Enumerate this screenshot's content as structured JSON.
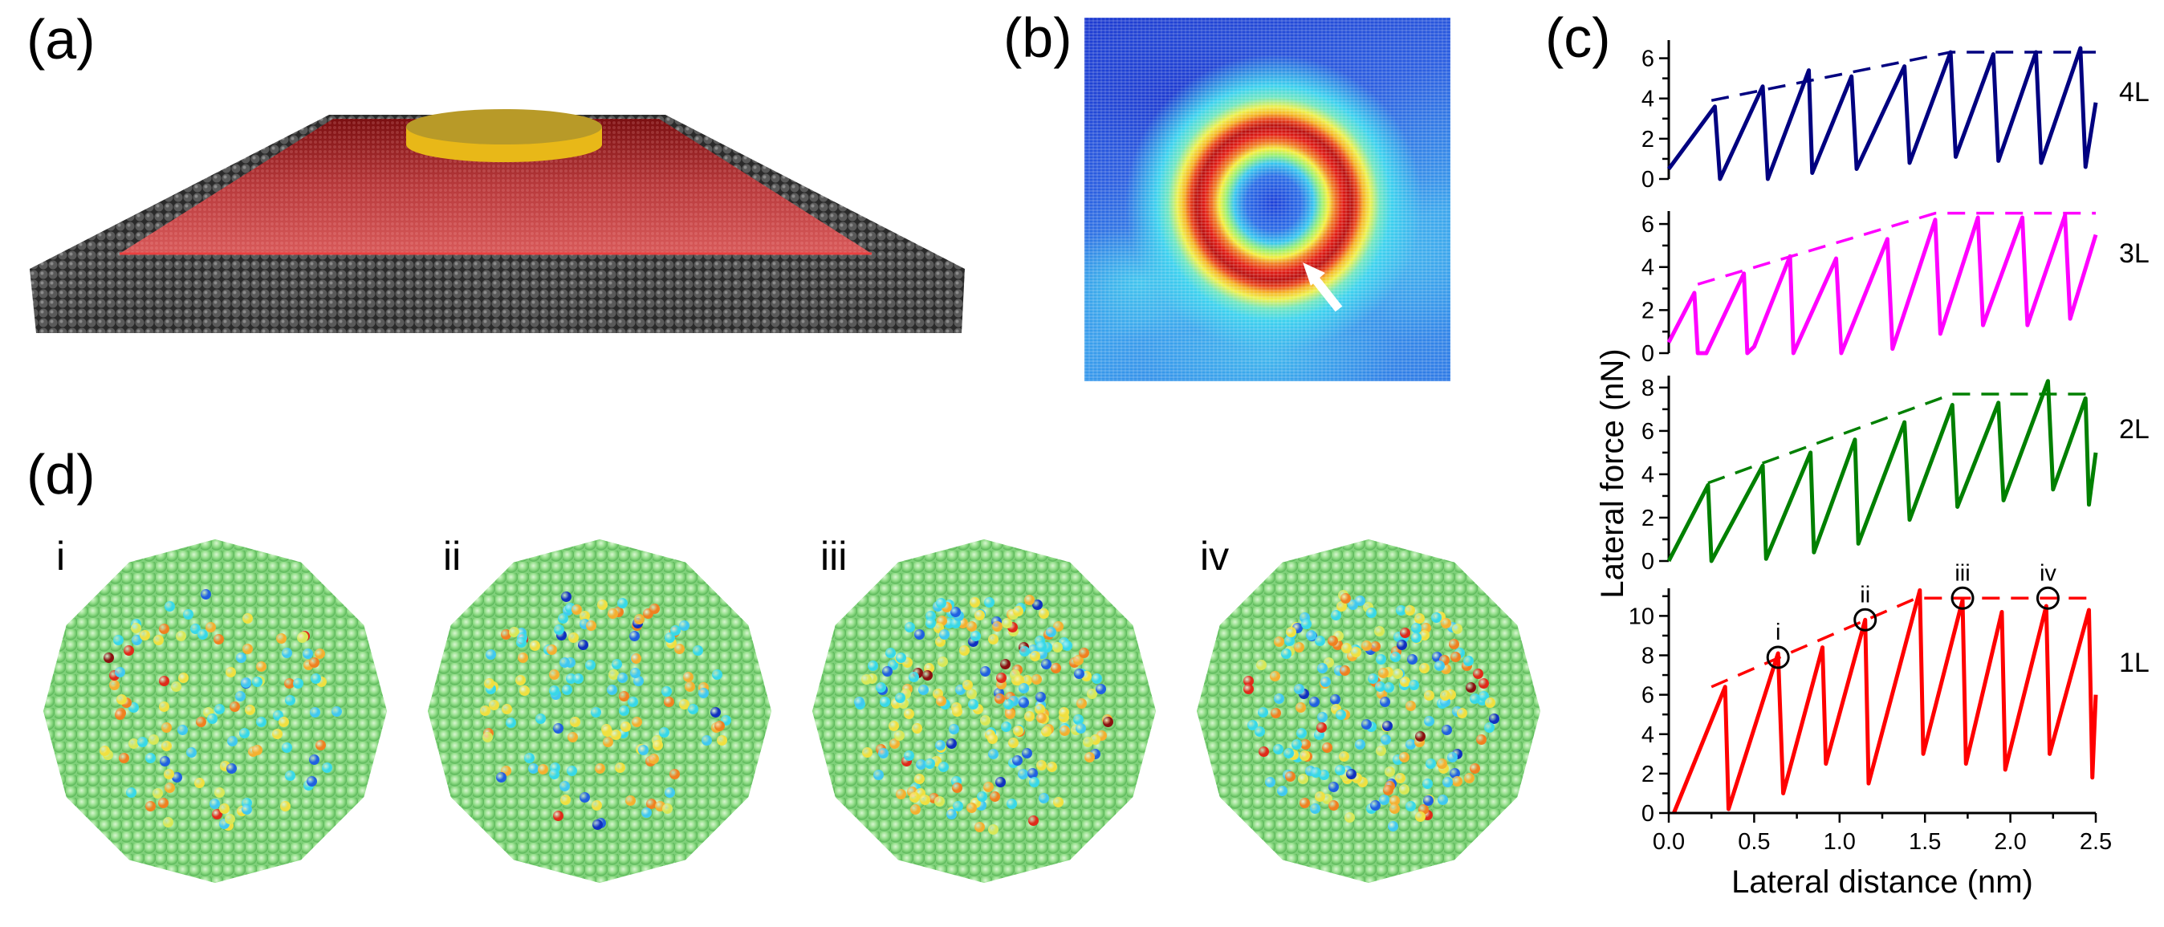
{
  "panel_labels": {
    "a": "(a)",
    "b": "(b)",
    "c": "(c)",
    "d": "(d)"
  },
  "panel_d": {
    "snapshots": [
      "i",
      "ii",
      "iii",
      "iv"
    ]
  },
  "panel_a": {
    "colors": {
      "substrate": "#3a3a3a",
      "layer": "#c0282a",
      "tip": "#d4aa20"
    }
  },
  "panel_b": {
    "colormap": "jet",
    "arrow_color": "#ffffff"
  },
  "chart_data": {
    "type": "line",
    "xlabel": "Lateral distance (nm)",
    "ylabel": "Lateral force (nN)",
    "xlim": [
      0,
      2.5
    ],
    "xticks": [
      "0.0",
      "0.5",
      "1.0",
      "1.5",
      "2.0",
      "2.5"
    ],
    "grid": false,
    "panels": [
      {
        "name": "4L",
        "color": "#000080",
        "ylim": [
          0,
          6.9
        ],
        "yticks": [
          0,
          2,
          4,
          6
        ],
        "series": [
          [
            0,
            0.5
          ],
          [
            0.27,
            3.6
          ],
          [
            0.3,
            0
          ],
          [
            0.55,
            4.6
          ],
          [
            0.58,
            0
          ],
          [
            0.82,
            5.4
          ],
          [
            0.84,
            0.3
          ],
          [
            1.07,
            5.1
          ],
          [
            1.1,
            0.5
          ],
          [
            1.38,
            5.6
          ],
          [
            1.41,
            0.8
          ],
          [
            1.65,
            6.3
          ],
          [
            1.68,
            1.1
          ],
          [
            1.9,
            6.2
          ],
          [
            1.93,
            0.9
          ],
          [
            2.15,
            6.3
          ],
          [
            2.18,
            0.8
          ],
          [
            2.41,
            6.5
          ],
          [
            2.44,
            0.6
          ],
          [
            2.5,
            3.8
          ]
        ],
        "envelope": [
          [
            0.25,
            3.9
          ],
          [
            1.65,
            6.3
          ],
          [
            2.5,
            6.3
          ]
        ]
      },
      {
        "name": "3L",
        "color": "#ff00ff",
        "ylim": [
          0,
          6.6
        ],
        "yticks": [
          0,
          2,
          4,
          6
        ],
        "series": [
          [
            0,
            0.5
          ],
          [
            0.15,
            2.8
          ],
          [
            0.17,
            0
          ],
          [
            0.22,
            0
          ],
          [
            0.44,
            3.7
          ],
          [
            0.46,
            0
          ],
          [
            0.5,
            0.3
          ],
          [
            0.71,
            4.5
          ],
          [
            0.73,
            0
          ],
          [
            0.98,
            4.4
          ],
          [
            1.01,
            0
          ],
          [
            1.28,
            5.3
          ],
          [
            1.31,
            0.2
          ],
          [
            1.56,
            6.2
          ],
          [
            1.59,
            0.9
          ],
          [
            1.81,
            6.3
          ],
          [
            1.84,
            1.3
          ],
          [
            2.07,
            6.3
          ],
          [
            2.1,
            1.3
          ],
          [
            2.32,
            6.4
          ],
          [
            2.35,
            1.6
          ],
          [
            2.5,
            5.5
          ]
        ],
        "envelope": [
          [
            0.17,
            3.2
          ],
          [
            1.56,
            6.5
          ],
          [
            2.5,
            6.5
          ]
        ]
      },
      {
        "name": "2L",
        "color": "#008000",
        "ylim": [
          0,
          8.55
        ],
        "yticks": [
          0,
          2,
          4,
          6,
          8
        ],
        "series": [
          [
            0,
            0
          ],
          [
            0.23,
            3.5
          ],
          [
            0.25,
            0
          ],
          [
            0.55,
            4.4
          ],
          [
            0.57,
            0.1
          ],
          [
            0.83,
            5.0
          ],
          [
            0.85,
            0.4
          ],
          [
            1.09,
            5.6
          ],
          [
            1.11,
            0.8
          ],
          [
            1.38,
            6.4
          ],
          [
            1.41,
            1.9
          ],
          [
            1.66,
            7.2
          ],
          [
            1.69,
            2.5
          ],
          [
            1.93,
            7.3
          ],
          [
            1.96,
            2.8
          ],
          [
            2.22,
            8.3
          ],
          [
            2.25,
            3.3
          ],
          [
            2.44,
            7.5
          ],
          [
            2.46,
            2.6
          ],
          [
            2.5,
            5.0
          ]
        ],
        "envelope": [
          [
            0.23,
            3.6
          ],
          [
            1.66,
            7.7
          ],
          [
            2.5,
            7.7
          ]
        ]
      },
      {
        "name": "1L",
        "color": "#ff0000",
        "ylim": [
          0,
          11.4
        ],
        "yticks": [
          0,
          2,
          4,
          6,
          8,
          10
        ],
        "series": [
          [
            0.03,
            0
          ],
          [
            0.33,
            6.4
          ],
          [
            0.35,
            0.2
          ],
          [
            0.64,
            8.1
          ],
          [
            0.67,
            1.0
          ],
          [
            0.9,
            8.4
          ],
          [
            0.92,
            2.5
          ],
          [
            1.15,
            9.8
          ],
          [
            1.17,
            1.5
          ],
          [
            1.47,
            11.3
          ],
          [
            1.49,
            3.0
          ],
          [
            1.72,
            10.8
          ],
          [
            1.74,
            2.5
          ],
          [
            1.95,
            10.2
          ],
          [
            1.97,
            2.2
          ],
          [
            2.21,
            10.5
          ],
          [
            2.23,
            3.0
          ],
          [
            2.46,
            10.3
          ],
          [
            2.48,
            1.8
          ],
          [
            2.5,
            6.0
          ]
        ],
        "envelope": [
          [
            0.25,
            6.4
          ],
          [
            1.45,
            10.9
          ],
          [
            2.5,
            10.9
          ]
        ],
        "annotations": [
          {
            "label": "i",
            "x": 0.64,
            "y": 7.9
          },
          {
            "label": "ii",
            "x": 1.15,
            "y": 9.8
          },
          {
            "label": "iii",
            "x": 1.72,
            "y": 10.9
          },
          {
            "label": "iv",
            "x": 2.22,
            "y": 10.9
          }
        ]
      }
    ]
  }
}
